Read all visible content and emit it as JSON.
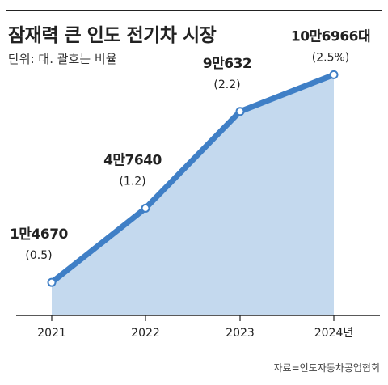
{
  "chart_data": {
    "type": "area",
    "title": "잠재력 큰 인도 전기차 시장",
    "subtitle": "단위: 대. 괄호는 비율",
    "source": "자료=인도자동차공업협회",
    "categories": [
      "2021",
      "2022",
      "2023",
      "2024년"
    ],
    "values": [
      14670,
      47640,
      90632,
      106966
    ],
    "value_labels": [
      "1만4670",
      "4만7640",
      "9만632",
      "10만6966대"
    ],
    "ratio_labels": [
      "(0.5)",
      "(1.2)",
      "(2.2)",
      "(2.5%)"
    ],
    "ylim": [
      0,
      115000
    ],
    "line_color": "#3f7fc6",
    "fill_color": "#c4d9ee"
  }
}
